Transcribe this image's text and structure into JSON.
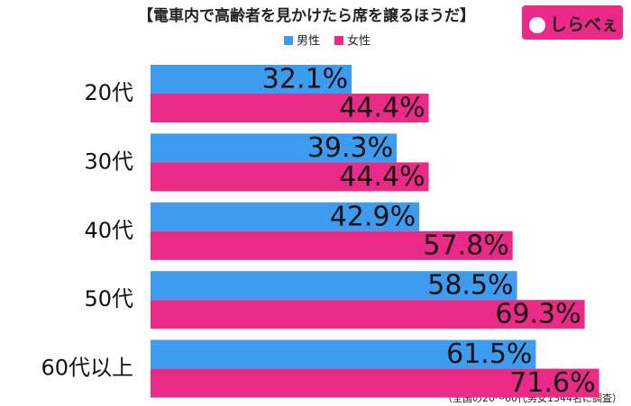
{
  "logo": "しらべぇ",
  "chart_data": {
    "type": "hbar",
    "title": "【電車内で高齢者を見かけたら席を譲るほうだ】",
    "categories": [
      "20代",
      "30代",
      "40代",
      "50代",
      "60代以上"
    ],
    "series": [
      {
        "name": "男性",
        "color": "#3d9cef",
        "values": [
          32.1,
          39.3,
          42.9,
          58.5,
          61.5
        ],
        "value_labels": [
          "32.1%",
          "39.3%",
          "42.9%",
          "58.5%",
          "61.5%"
        ]
      },
      {
        "name": "女性",
        "color": "#ea2a86",
        "values": [
          44.4,
          44.4,
          57.8,
          69.3,
          71.6
        ],
        "value_labels": [
          "44.4%",
          "44.4%",
          "57.8%",
          "69.3%",
          "71.6%"
        ]
      }
    ],
    "note": "（全国の20～60代男女1344名に調査）"
  }
}
